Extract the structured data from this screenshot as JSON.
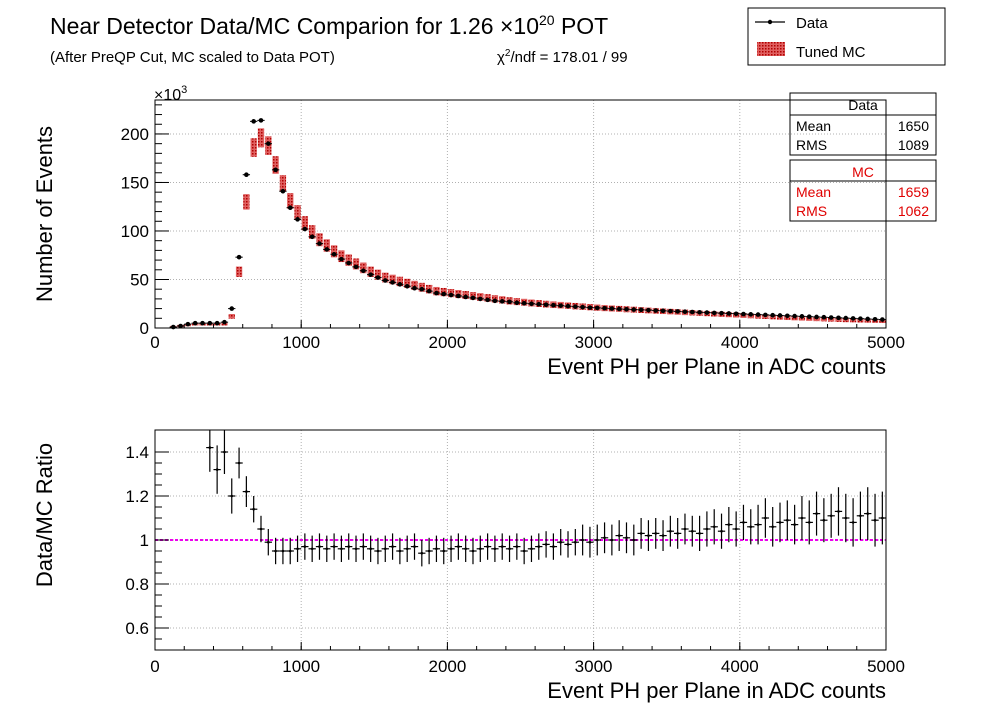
{
  "title": {
    "main_prefix": "Near Detector Data/MC Comparion for 1.26 ",
    "times": "×10",
    "exponent": "20",
    "main_suffix": " POT",
    "subtitle": "(After PreQP Cut, MC scaled to Data POT)",
    "chi2_symbol": "χ",
    "chi2_sup": "2",
    "chi2_text": "/ndf = 178.01 / 99"
  },
  "legend": {
    "data_label": "Data",
    "mc_label": "Tuned MC"
  },
  "stats": {
    "data": {
      "title": "Data",
      "mean_label": "Mean",
      "mean_value": "1650",
      "rms_label": "RMS",
      "rms_value": "1089"
    },
    "mc": {
      "title": "MC",
      "mean_label": "Mean",
      "mean_value": "1659",
      "rms_label": "RMS",
      "rms_value": "1062"
    }
  },
  "colors": {
    "data": "#000000",
    "mc": "#cc0000",
    "ratio_line": "#ee00ee",
    "grid": "#b0b0b0"
  },
  "chart_data": [
    {
      "type": "line",
      "description": "histogram comparison",
      "xlabel": "Event PH per Plane in ADC counts",
      "ylabel": "Number of Events",
      "y_multiplier": "×10",
      "y_multiplier_exp": "3",
      "xlim": [
        0,
        5000
      ],
      "ylim": [
        0,
        235
      ],
      "xticks": [
        0,
        1000,
        2000,
        3000,
        4000,
        5000
      ],
      "yticks": [
        0,
        50,
        100,
        150,
        200
      ],
      "grid": true,
      "legend_position": "top-right",
      "bin_width": 50,
      "x": [
        125,
        175,
        225,
        275,
        325,
        375,
        425,
        475,
        525,
        575,
        625,
        675,
        725,
        775,
        825,
        875,
        925,
        975,
        1025,
        1075,
        1125,
        1175,
        1225,
        1275,
        1325,
        1375,
        1425,
        1475,
        1525,
        1575,
        1625,
        1675,
        1725,
        1775,
        1825,
        1875,
        1925,
        1975,
        2025,
        2075,
        2125,
        2175,
        2225,
        2275,
        2325,
        2375,
        2425,
        2475,
        2525,
        2575,
        2625,
        2675,
        2725,
        2775,
        2825,
        2875,
        2925,
        2975,
        3025,
        3075,
        3125,
        3175,
        3225,
        3275,
        3325,
        3375,
        3425,
        3475,
        3525,
        3575,
        3625,
        3675,
        3725,
        3775,
        3825,
        3875,
        3925,
        3975,
        4025,
        4075,
        4125,
        4175,
        4225,
        4275,
        4325,
        4375,
        4425,
        4475,
        4525,
        4575,
        4625,
        4675,
        4725,
        4775,
        4825,
        4875,
        4925,
        4975
      ],
      "series": [
        {
          "name": "Data",
          "values": [
            1,
            2,
            4,
            5,
            5,
            5,
            5,
            6,
            20,
            73,
            158,
            213,
            214,
            190,
            163,
            141,
            124,
            112,
            102,
            94,
            87,
            81,
            76,
            71,
            67,
            63,
            59,
            55,
            52,
            49,
            47,
            45,
            43,
            41,
            40,
            38,
            36,
            35,
            34,
            33,
            32,
            31,
            30,
            29,
            28,
            27.5,
            27,
            26,
            25.5,
            25,
            24.5,
            24,
            23.5,
            23,
            22.5,
            22,
            21.5,
            21,
            20.7,
            20.4,
            20,
            19.6,
            19.3,
            19,
            18.7,
            18.4,
            18,
            17.7,
            17.4,
            17.1,
            16.8,
            16.5,
            16.2,
            15.9,
            15.6,
            15.3,
            15,
            14.7,
            14.4,
            14.1,
            13.8,
            13.5,
            13.2,
            12.9,
            12.6,
            12.3,
            12,
            11.7,
            11.4,
            11.1,
            10.8,
            10.5,
            10.2,
            9.9,
            9.6,
            9.3,
            9,
            8.7
          ]
        },
        {
          "name": "Tuned MC",
          "values": [
            1,
            2,
            3,
            4,
            4,
            4,
            4,
            4,
            12,
            58,
            130,
            186,
            196,
            188,
            168,
            149,
            131,
            119,
            108,
            99,
            91,
            85,
            79,
            74,
            70,
            66,
            62,
            58,
            55,
            52,
            50,
            48,
            46,
            44,
            42,
            40,
            38,
            37,
            36,
            35,
            34,
            33,
            32,
            31,
            30,
            29,
            28,
            27.2,
            26.5,
            25.8,
            25.2,
            24.6,
            24,
            23.5,
            23,
            22.5,
            22,
            21.5,
            21,
            20.5,
            20.1,
            19.7,
            19.3,
            18.9,
            18.5,
            18.1,
            17.7,
            17.3,
            16.9,
            16.5,
            16.1,
            15.7,
            15.3,
            14.9,
            14.5,
            14.1,
            13.7,
            13.3,
            12.9,
            12.5,
            12.1,
            11.7,
            11.3,
            10.9,
            10.5,
            10.1,
            9.8,
            9.5,
            9.2,
            8.9,
            8.6,
            8.3,
            8,
            7.8,
            7.6,
            7.4,
            7.2,
            7
          ]
        }
      ]
    },
    {
      "type": "scatter",
      "description": "ratio with error bars",
      "xlabel": "Event PH per Plane in ADC counts",
      "ylabel": "Data/MC Ratio",
      "xlim": [
        0,
        5000
      ],
      "ylim": [
        0.5,
        1.5
      ],
      "xticks": [
        0,
        1000,
        2000,
        3000,
        4000,
        5000
      ],
      "yticks": [
        0.6,
        0.8,
        1,
        1.2,
        1.4
      ],
      "reference_line": 1,
      "grid": true,
      "x": [
        375,
        425,
        475,
        525,
        575,
        625,
        675,
        725,
        775,
        825,
        875,
        925,
        975,
        1025,
        1075,
        1125,
        1175,
        1225,
        1275,
        1325,
        1375,
        1425,
        1475,
        1525,
        1575,
        1625,
        1675,
        1725,
        1775,
        1825,
        1875,
        1925,
        1975,
        2025,
        2075,
        2125,
        2175,
        2225,
        2275,
        2325,
        2375,
        2425,
        2475,
        2525,
        2575,
        2625,
        2675,
        2725,
        2775,
        2825,
        2875,
        2925,
        2975,
        3025,
        3075,
        3125,
        3175,
        3225,
        3275,
        3325,
        3375,
        3425,
        3475,
        3525,
        3575,
        3625,
        3675,
        3725,
        3775,
        3825,
        3875,
        3925,
        3975,
        4025,
        4075,
        4125,
        4175,
        4225,
        4275,
        4325,
        4375,
        4425,
        4475,
        4525,
        4575,
        4625,
        4675,
        4725,
        4775,
        4825,
        4875,
        4925,
        4975
      ],
      "values": [
        1.42,
        1.32,
        1.4,
        1.2,
        1.35,
        1.22,
        1.14,
        1.05,
        0.99,
        0.95,
        0.95,
        0.95,
        0.96,
        0.97,
        0.96,
        0.97,
        0.96,
        0.97,
        0.96,
        0.97,
        0.96,
        0.97,
        0.96,
        0.95,
        0.96,
        0.97,
        0.95,
        0.96,
        0.97,
        0.94,
        0.95,
        0.96,
        0.95,
        0.96,
        0.97,
        0.96,
        0.95,
        0.96,
        0.97,
        0.96,
        0.97,
        0.96,
        0.97,
        0.95,
        0.96,
        0.97,
        0.98,
        0.97,
        0.99,
        0.98,
        0.99,
        1.0,
        0.99,
        1.0,
        1.01,
        1.0,
        1.02,
        1.01,
        1.0,
        1.03,
        1.02,
        1.03,
        1.02,
        1.04,
        1.03,
        1.05,
        1.04,
        1.03,
        1.05,
        1.06,
        1.04,
        1.07,
        1.05,
        1.08,
        1.06,
        1.07,
        1.1,
        1.06,
        1.08,
        1.09,
        1.07,
        1.1,
        1.08,
        1.12,
        1.09,
        1.11,
        1.13,
        1.1,
        1.08,
        1.11,
        1.12,
        1.09,
        1.1
      ],
      "errors": [
        0.11,
        0.11,
        0.1,
        0.08,
        0.07,
        0.07,
        0.06,
        0.06,
        0.06,
        0.06,
        0.06,
        0.06,
        0.06,
        0.06,
        0.06,
        0.06,
        0.06,
        0.06,
        0.06,
        0.06,
        0.06,
        0.06,
        0.06,
        0.06,
        0.06,
        0.06,
        0.06,
        0.06,
        0.06,
        0.06,
        0.06,
        0.06,
        0.06,
        0.06,
        0.06,
        0.06,
        0.06,
        0.06,
        0.06,
        0.06,
        0.06,
        0.06,
        0.06,
        0.06,
        0.06,
        0.06,
        0.06,
        0.06,
        0.06,
        0.06,
        0.06,
        0.07,
        0.07,
        0.07,
        0.07,
        0.07,
        0.07,
        0.07,
        0.07,
        0.07,
        0.07,
        0.07,
        0.07,
        0.07,
        0.07,
        0.07,
        0.07,
        0.08,
        0.08,
        0.08,
        0.08,
        0.08,
        0.08,
        0.08,
        0.08,
        0.09,
        0.09,
        0.09,
        0.09,
        0.09,
        0.09,
        0.1,
        0.1,
        0.1,
        0.1,
        0.1,
        0.11,
        0.11,
        0.11,
        0.11,
        0.12,
        0.12,
        0.12
      ]
    }
  ]
}
